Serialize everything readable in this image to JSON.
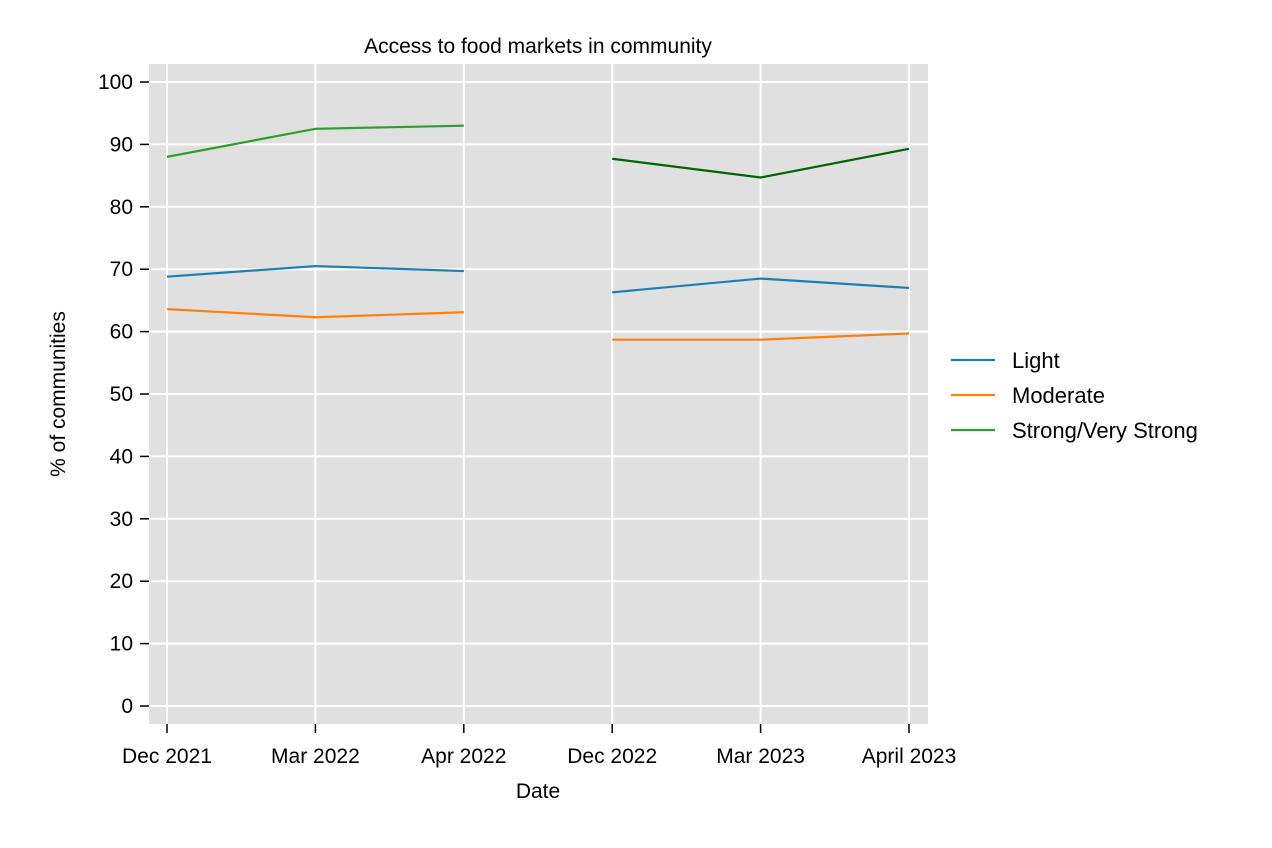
{
  "chart_data": {
    "type": "line",
    "title": "Access to food markets in community",
    "xlabel": "Date",
    "ylabel": "% of communities",
    "ylim": [
      0,
      100
    ],
    "yticks": [
      0,
      10,
      20,
      30,
      40,
      50,
      60,
      70,
      80,
      90,
      100
    ],
    "categories": [
      "Dec 2021",
      "Mar 2022",
      "Apr 2022",
      "Dec 2022",
      "Mar 2023",
      "April 2023"
    ],
    "grid": true,
    "legend_position": "right",
    "series": [
      {
        "name": "Light",
        "color": "#1a7fb5",
        "segments": [
          [
            68.8,
            70.5,
            69.7
          ],
          [
            66.3,
            68.5,
            67.0
          ]
        ]
      },
      {
        "name": "Moderate",
        "color": "#ff7f0e",
        "segments": [
          [
            63.6,
            62.3,
            63.1
          ],
          [
            58.7,
            58.7,
            59.7
          ]
        ]
      },
      {
        "name": "Strong/Very Strong",
        "color": "#2ca02c",
        "segments": [
          [
            88.0,
            92.5,
            93.0
          ],
          [
            87.7,
            84.7,
            89.3
          ]
        ],
        "segment_colors": [
          "#2ca02c",
          "#006400"
        ]
      }
    ]
  }
}
